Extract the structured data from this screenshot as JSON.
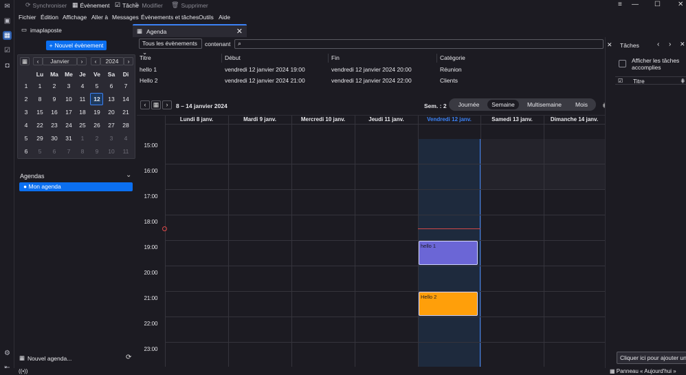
{
  "toolbar": {
    "sync": "Synchroniser",
    "event": "Évènement",
    "task": "Tâche",
    "modify": "Modifier",
    "delete": "Supprimer"
  },
  "menu": [
    "Fichier",
    "Édition",
    "Affichage",
    "Aller à",
    "Messages",
    "Évènements et tâches",
    "Outils",
    "Aide"
  ],
  "account": "imaplaposte",
  "tab": {
    "label": "Agenda"
  },
  "left": {
    "new_event": "Nouvel évènement",
    "month": "Janvier",
    "year": "2024",
    "day_names": [
      "Lu",
      "Ma",
      "Me",
      "Je",
      "Ve",
      "Sa",
      "Di"
    ],
    "weeks": [
      {
        "wk": "1",
        "days": [
          "1",
          "2",
          "3",
          "4",
          "5",
          "6",
          "7"
        ]
      },
      {
        "wk": "2",
        "days": [
          "8",
          "9",
          "10",
          "11",
          "12",
          "13",
          "14"
        ]
      },
      {
        "wk": "3",
        "days": [
          "15",
          "16",
          "17",
          "18",
          "19",
          "20",
          "21"
        ]
      },
      {
        "wk": "4",
        "days": [
          "22",
          "23",
          "24",
          "25",
          "26",
          "27",
          "28"
        ]
      },
      {
        "wk": "5",
        "days": [
          "29",
          "30",
          "31",
          "1",
          "2",
          "3",
          "4"
        ]
      },
      {
        "wk": "6",
        "days": [
          "5",
          "6",
          "7",
          "8",
          "9",
          "10",
          "11"
        ]
      }
    ],
    "agendas_title": "Agendas",
    "agenda_item": "Mon agenda",
    "new_agenda": "Nouvel agenda..."
  },
  "filter": {
    "select": "Tous les évènements",
    "containing": "contenant"
  },
  "event_list": {
    "headers": [
      "Titre",
      "Début",
      "Fin",
      "Catégorie"
    ],
    "rows": [
      [
        "hello 1",
        "vendredi 12 janvier 2024 19:00",
        "vendredi 12 janvier 2024 20:00",
        "Réunion"
      ],
      [
        "Hello 2",
        "vendredi 12 janvier 2024 21:00",
        "vendredi 12 janvier 2024 22:00",
        "Clients"
      ]
    ]
  },
  "view": {
    "range": "8 – 14 janvier 2024",
    "week": "Sem. : 2",
    "modes": [
      "Journée",
      "Semaine",
      "Multisemaine",
      "Mois"
    ],
    "days": [
      "Lundi 8 janv.",
      "Mardi 9 janv.",
      "Mercredi 10 janv.",
      "Jeudi 11 janv.",
      "Vendredi 12 janv.",
      "Samedi 13 janv.",
      "Dimanche 14 janv."
    ],
    "hours": [
      "15:00",
      "16:00",
      "17:00",
      "18:00",
      "19:00",
      "20:00",
      "21:00",
      "22:00",
      "23:00"
    ],
    "events": [
      {
        "title": "hello 1",
        "color": "#6b66d6"
      },
      {
        "title": "Hello 2",
        "color": "#ff9f0a"
      }
    ]
  },
  "tasks": {
    "title": "Tâches",
    "show_done": "Afficher les tâches accomplies",
    "col_title": "Titre",
    "add": "Cliquer ici pour ajouter une"
  },
  "status": {
    "today_pane": "Panneau « Aujourd'hui »"
  },
  "colors": {
    "accent": "#0b6ff0",
    "today_col": "#1e2a3d"
  }
}
